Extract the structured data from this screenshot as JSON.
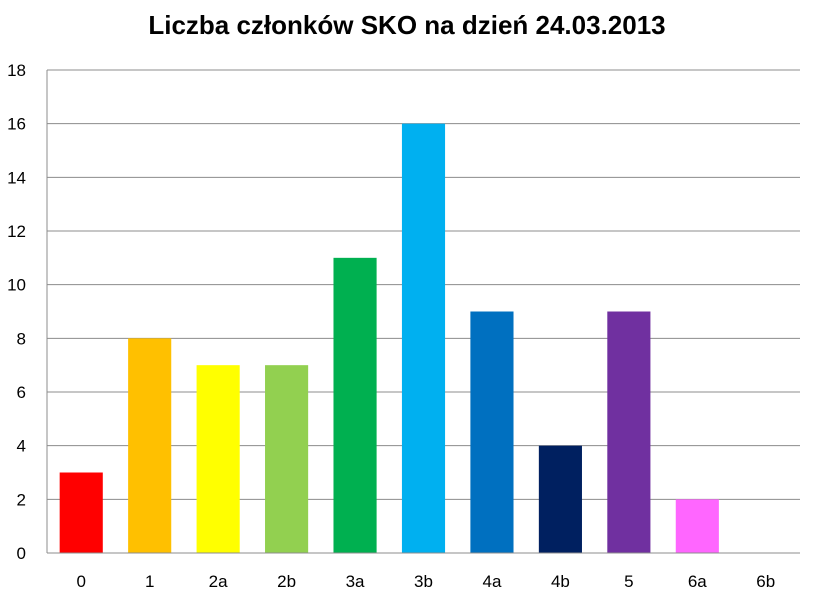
{
  "chart_data": {
    "type": "bar",
    "title": "Liczba członków SKO na dzień 24.03.2013",
    "xlabel": "",
    "ylabel": "",
    "ylim": [
      0,
      18
    ],
    "yticks": [
      0,
      2,
      4,
      6,
      8,
      10,
      12,
      14,
      16,
      18
    ],
    "grid": true,
    "categories": [
      "0",
      "1",
      "2a",
      "2b",
      "3a",
      "3b",
      "4a",
      "4b",
      "5",
      "6a",
      "6b"
    ],
    "values": [
      3,
      8,
      7,
      7,
      11,
      16,
      9,
      4,
      9,
      2,
      0
    ],
    "colors": [
      "#FF0000",
      "#FFC000",
      "#FFFF00",
      "#92D050",
      "#00B050",
      "#00B0F0",
      "#0070C0",
      "#002060",
      "#7030A0",
      "#FF66FF",
      "#000000"
    ]
  }
}
